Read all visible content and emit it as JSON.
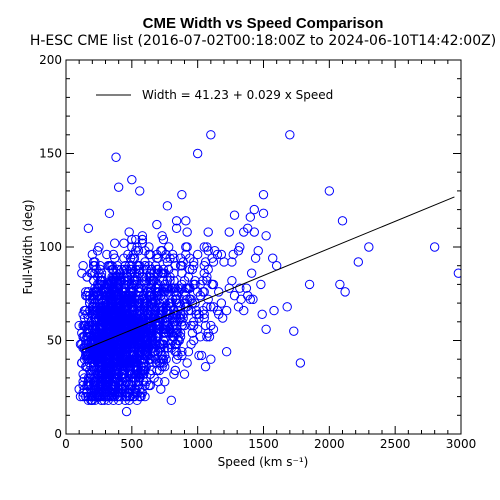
{
  "chart_data": {
    "type": "scatter",
    "title": "CME Width vs Speed Comparison",
    "subtitle": "H-ESC CME list (2016-07-02T00:18:00Z to 2024-06-10T14:42:00Z)",
    "xlabel": "Speed (km s⁻¹)",
    "ylabel": "Full-Width (deg)",
    "xlim": [
      0,
      3000
    ],
    "ylim": [
      0,
      200
    ],
    "x_ticks": [
      "0",
      "500",
      "1000",
      "1500",
      "2000",
      "2500",
      "3000"
    ],
    "y_ticks": [
      "0",
      "50",
      "100",
      "150",
      "200"
    ],
    "grid": false,
    "legend_position": "top-left",
    "marker_color": "#0000ff",
    "fit_color": "#000000",
    "fit_label": "Width = 41.23 + 0.029 x Speed",
    "fit": {
      "intercept": 41.23,
      "slope": 0.029,
      "x_range": [
        120,
        2950
      ]
    },
    "notable_points": [
      {
        "x": 380,
        "y": 148
      },
      {
        "x": 1000,
        "y": 150
      },
      {
        "x": 1100,
        "y": 160
      },
      {
        "x": 1700,
        "y": 160
      },
      {
        "x": 2000,
        "y": 130
      },
      {
        "x": 2100,
        "y": 114
      },
      {
        "x": 1500,
        "y": 128
      },
      {
        "x": 2300,
        "y": 100
      },
      {
        "x": 2800,
        "y": 100
      },
      {
        "x": 2980,
        "y": 86
      },
      {
        "x": 2220,
        "y": 92
      },
      {
        "x": 1850,
        "y": 80
      },
      {
        "x": 2080,
        "y": 80
      },
      {
        "x": 2120,
        "y": 76
      },
      {
        "x": 1780,
        "y": 38
      },
      {
        "x": 1730,
        "y": 55
      },
      {
        "x": 1680,
        "y": 68
      },
      {
        "x": 1520,
        "y": 56
      },
      {
        "x": 460,
        "y": 12
      },
      {
        "x": 400,
        "y": 132
      },
      {
        "x": 500,
        "y": 136
      },
      {
        "x": 560,
        "y": 130
      },
      {
        "x": 880,
        "y": 128
      },
      {
        "x": 1280,
        "y": 117
      },
      {
        "x": 1600,
        "y": 90
      }
    ],
    "cloud": {
      "approx_point_count": 2400,
      "center": {
        "x": 430,
        "y": 50
      },
      "x_range": [
        100,
        1700
      ],
      "y_range": [
        18,
        150
      ]
    }
  }
}
